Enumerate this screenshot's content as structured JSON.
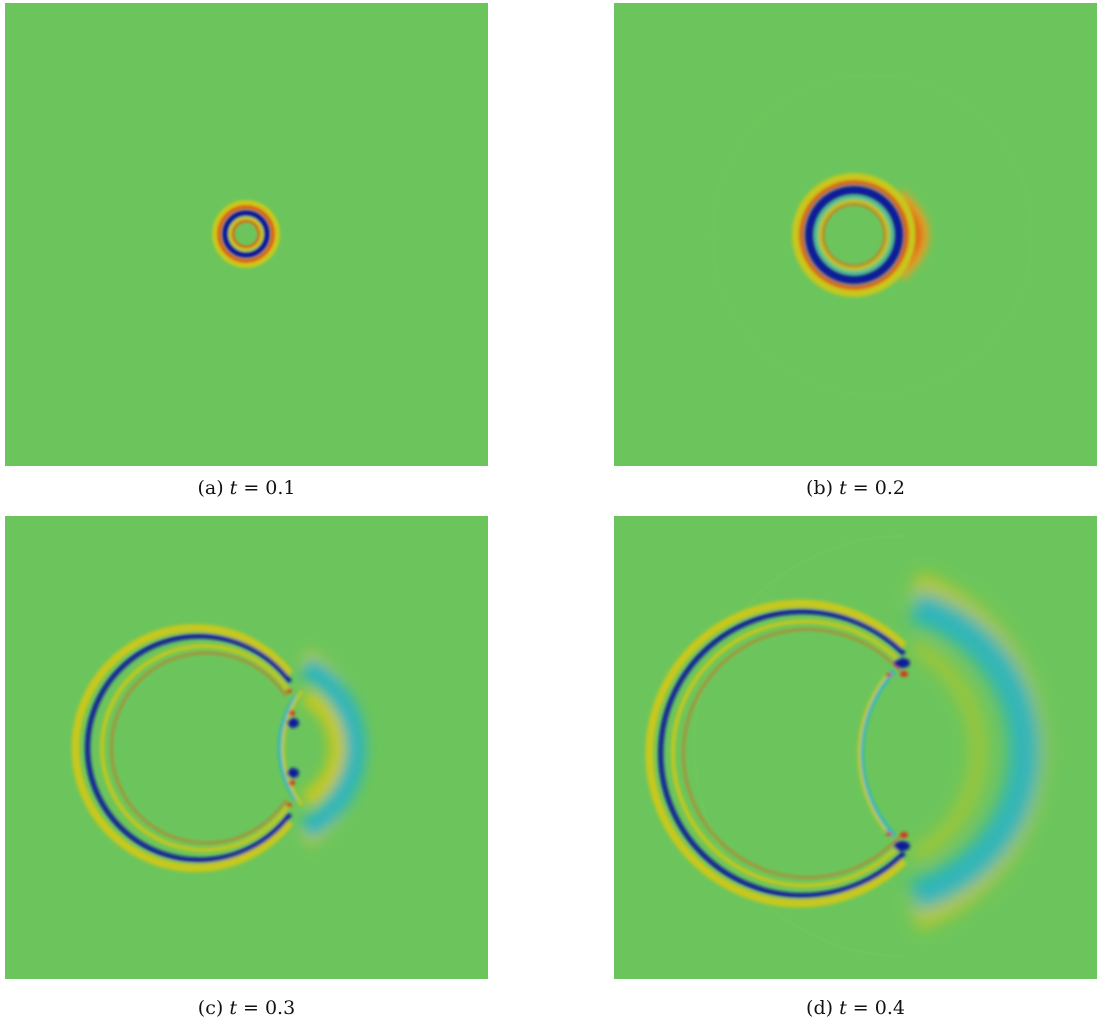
{
  "panels": [
    {
      "id": "a",
      "label": "(a)",
      "var": "t",
      "eq": "= 0.1"
    },
    {
      "id": "b",
      "label": "(b)",
      "var": "t",
      "eq": "= 0.2"
    },
    {
      "id": "c",
      "label": "(c)",
      "var": "t",
      "eq": "= 0.3"
    },
    {
      "id": "d",
      "label": "(d)",
      "var": "t",
      "eq": "= 0.4"
    }
  ],
  "colors": {
    "background": "#6cc55c",
    "yellow": "#c8c81e",
    "orange": "#e8a020",
    "red": "#d83018",
    "blue": "#0a1a9a",
    "cyan": "#24b4c8"
  }
}
